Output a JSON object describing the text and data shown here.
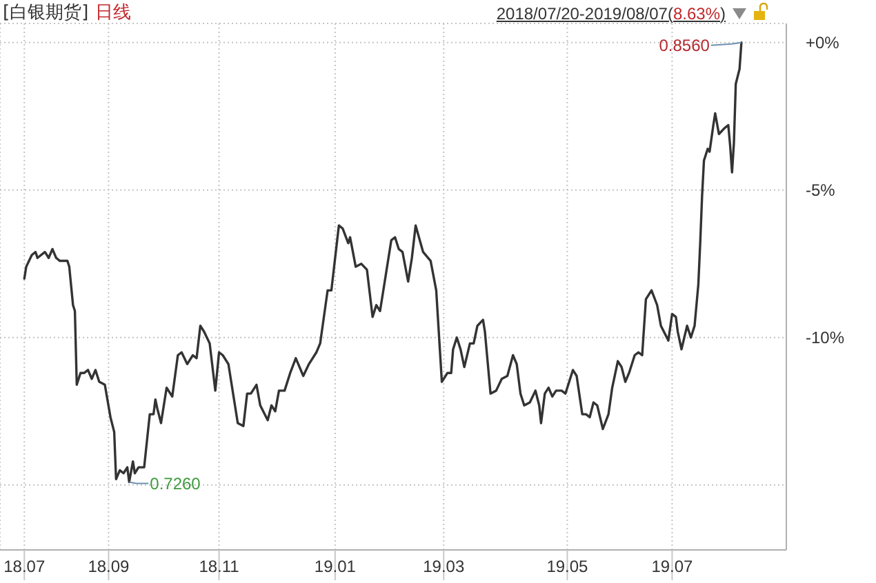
{
  "chart_data": {
    "type": "line",
    "title": "[白银期货]",
    "subtitle": "日线",
    "color": "#333333",
    "grid": true,
    "annotations": [
      "2018/07/20-2019/08/07(8.63%)",
      {
        "text": "0.8560",
        "x": "2019-08-07",
        "y": 0
      },
      {
        "text": "0.7260",
        "x": "2018-09-14",
        "y": -14.9
      }
    ],
    "xlim": [
      "2018-07-07",
      "2019-08-31"
    ],
    "xticks": [
      {
        "value": "2018-07-20",
        "label": "18.07"
      },
      {
        "value": "2018-09-03",
        "label": "18.09"
      },
      {
        "value": "2018-11-01",
        "label": "18.11"
      },
      {
        "value": "2019-01-02",
        "label": "19.01"
      },
      {
        "value": "2019-03-01",
        "label": "19.03"
      },
      {
        "value": "2019-05-06",
        "label": "19.05"
      },
      {
        "value": "2019-07-01",
        "label": "19.07"
      }
    ],
    "ylim": [
      -17.2,
      0.65
    ],
    "yticks": [
      {
        "value": 0,
        "label": "+0%"
      },
      {
        "value": -5,
        "label": "-5%"
      },
      {
        "value": -10,
        "label": "-10%"
      },
      {
        "value": -15,
        "label": null
      }
    ],
    "x": [
      "2018-07-20",
      "2018-07-21",
      "2018-07-24",
      "2018-07-26",
      "2018-07-27",
      "2018-07-31",
      "2018-08-02",
      "2018-08-04",
      "2018-08-06",
      "2018-08-08",
      "2018-08-12",
      "2018-08-13",
      "2018-08-15",
      "2018-08-16",
      "2018-08-17",
      "2018-08-19",
      "2018-08-21",
      "2018-08-23",
      "2018-08-25",
      "2018-08-27",
      "2018-08-29",
      "2018-09-01",
      "2018-09-04",
      "2018-09-06",
      "2018-09-07",
      "2018-09-09",
      "2018-09-11",
      "2018-09-13",
      "2018-09-14",
      "2018-09-16",
      "2018-09-17",
      "2018-09-19",
      "2018-09-22",
      "2018-09-25",
      "2018-09-27",
      "2018-09-28",
      "2018-09-29",
      "2018-10-01",
      "2018-10-04",
      "2018-10-07",
      "2018-10-10",
      "2018-10-12",
      "2018-10-15",
      "2018-10-18",
      "2018-10-20",
      "2018-10-22",
      "2018-10-24",
      "2018-10-27",
      "2018-10-30",
      "2018-11-01",
      "2018-11-03",
      "2018-11-06",
      "2018-11-09",
      "2018-11-11",
      "2018-11-14",
      "2018-11-16",
      "2018-11-18",
      "2018-11-21",
      "2018-11-23",
      "2018-11-27",
      "2018-11-29",
      "2018-12-01",
      "2018-12-03",
      "2018-12-06",
      "2018-12-09",
      "2018-12-12",
      "2018-12-16",
      "2018-12-19",
      "2018-12-23",
      "2018-12-25",
      "2018-12-29",
      "2018-12-31",
      "2019-01-04",
      "2019-01-06",
      "2019-01-09",
      "2019-01-10",
      "2019-01-13",
      "2019-01-16",
      "2019-01-19",
      "2019-01-22",
      "2019-01-24",
      "2019-01-26",
      "2019-01-29",
      "2019-02-01",
      "2019-02-03",
      "2019-02-05",
      "2019-02-07",
      "2019-02-10",
      "2019-02-12",
      "2019-02-14",
      "2019-02-18",
      "2019-02-22",
      "2019-02-25",
      "2019-02-28",
      "2019-03-03",
      "2019-03-05",
      "2019-03-06",
      "2019-03-08",
      "2019-03-10",
      "2019-03-12",
      "2019-03-15",
      "2019-03-17",
      "2019-03-19",
      "2019-03-22",
      "2019-03-23",
      "2019-03-26",
      "2019-03-29",
      "2019-04-01",
      "2019-04-04",
      "2019-04-07",
      "2019-04-09",
      "2019-04-11",
      "2019-04-13",
      "2019-04-16",
      "2019-04-19",
      "2019-04-21",
      "2019-04-22",
      "2019-04-24",
      "2019-04-26",
      "2019-04-28",
      "2019-04-30",
      "2019-05-03",
      "2019-05-05",
      "2019-05-09",
      "2019-05-11",
      "2019-05-14",
      "2019-05-16",
      "2019-05-18",
      "2019-05-20",
      "2019-05-22",
      "2019-05-25",
      "2019-05-28",
      "2019-05-30",
      "2019-06-02",
      "2019-06-04",
      "2019-06-06",
      "2019-06-08",
      "2019-06-11",
      "2019-06-13",
      "2019-06-15",
      "2019-06-17",
      "2019-06-20",
      "2019-06-23",
      "2019-06-25",
      "2019-06-29",
      "2019-07-01",
      "2019-07-03",
      "2019-07-04",
      "2019-07-06",
      "2019-07-09",
      "2019-07-11",
      "2019-07-13",
      "2019-07-15",
      "2019-07-16",
      "2019-07-17",
      "2019-07-18",
      "2019-07-20",
      "2019-07-21",
      "2019-07-23",
      "2019-07-24",
      "2019-07-26",
      "2019-07-29",
      "2019-07-31",
      "2019-08-01",
      "2019-08-02",
      "2019-08-03",
      "2019-08-04",
      "2019-08-06",
      "2019-08-07"
    ],
    "values": [
      -8.0,
      -7.6,
      -7.2,
      -7.1,
      -7.3,
      -7.1,
      -7.3,
      -7.0,
      -7.3,
      -7.4,
      -7.4,
      -7.6,
      -8.9,
      -9.1,
      -11.6,
      -11.2,
      -11.2,
      -11.1,
      -11.4,
      -11.1,
      -11.5,
      -11.6,
      -12.7,
      -13.2,
      -14.8,
      -14.5,
      -14.6,
      -14.4,
      -14.9,
      -14.2,
      -14.6,
      -14.4,
      -14.4,
      -12.6,
      -12.6,
      -12.1,
      -12.4,
      -12.9,
      -11.7,
      -12.0,
      -10.6,
      -10.5,
      -10.9,
      -10.6,
      -10.7,
      -9.6,
      -9.8,
      -10.2,
      -11.8,
      -10.5,
      -10.6,
      -10.9,
      -12.1,
      -12.9,
      -13.0,
      -11.9,
      -11.9,
      -11.6,
      -12.3,
      -12.8,
      -12.3,
      -12.5,
      -11.8,
      -11.8,
      -11.2,
      -10.7,
      -11.3,
      -10.9,
      -10.5,
      -10.2,
      -8.4,
      -8.4,
      -6.2,
      -6.3,
      -6.8,
      -6.6,
      -7.6,
      -7.5,
      -7.7,
      -9.3,
      -8.9,
      -9.1,
      -7.9,
      -6.7,
      -6.6,
      -7.0,
      -7.1,
      -8.1,
      -7.3,
      -6.2,
      -7.1,
      -7.4,
      -8.4,
      -11.5,
      -11.2,
      -11.2,
      -10.4,
      -10.0,
      -10.4,
      -11.0,
      -10.2,
      -10.2,
      -9.6,
      -9.4,
      -9.8,
      -11.9,
      -11.8,
      -11.4,
      -11.3,
      -10.6,
      -10.9,
      -11.9,
      -12.3,
      -12.2,
      -11.8,
      -12.3,
      -12.9,
      -11.9,
      -11.7,
      -12.0,
      -11.8,
      -11.8,
      -11.9,
      -11.1,
      -11.3,
      -12.6,
      -12.6,
      -12.7,
      -12.2,
      -12.3,
      -13.1,
      -12.6,
      -11.7,
      -10.8,
      -11.0,
      -11.5,
      -11.2,
      -10.6,
      -10.5,
      -10.6,
      -8.7,
      -8.4,
      -8.9,
      -9.6,
      -10.1,
      -9.2,
      -9.3,
      -9.8,
      -10.4,
      -9.6,
      -10.0,
      -9.6,
      -8.2,
      -6.8,
      -5.2,
      -4.0,
      -3.6,
      -3.7,
      -2.8,
      -2.4,
      -3.1,
      -2.9,
      -2.8,
      -3.5,
      -4.4,
      -3.4,
      -1.4,
      -0.9,
      0
    ]
  }
}
